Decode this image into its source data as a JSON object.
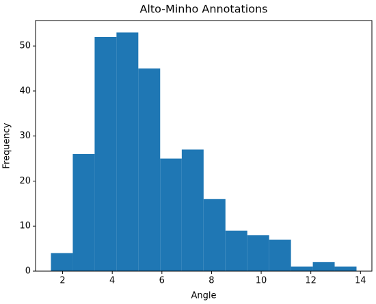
{
  "chart_data": {
    "type": "histogram",
    "title": "Alto-Minho Annotations",
    "x_label": "Angle",
    "y_label": "Frequency",
    "bins": [
      1.53,
      2.41,
      3.29,
      4.17,
      5.05,
      5.93,
      6.8,
      7.68,
      8.56,
      9.44,
      10.32,
      11.2,
      12.08,
      12.96,
      13.84
    ],
    "counts": [
      4,
      26,
      52,
      53,
      45,
      25,
      27,
      16,
      9,
      8,
      7,
      1,
      2,
      1
    ],
    "color": "#1f77b4",
    "xlim": [
      0.91,
      14.46
    ],
    "xticks": [
      2,
      4,
      6,
      8,
      10,
      12,
      14
    ],
    "ylim": [
      0,
      55.65
    ],
    "yticks": [
      0,
      10,
      20,
      30,
      40,
      50
    ]
  }
}
